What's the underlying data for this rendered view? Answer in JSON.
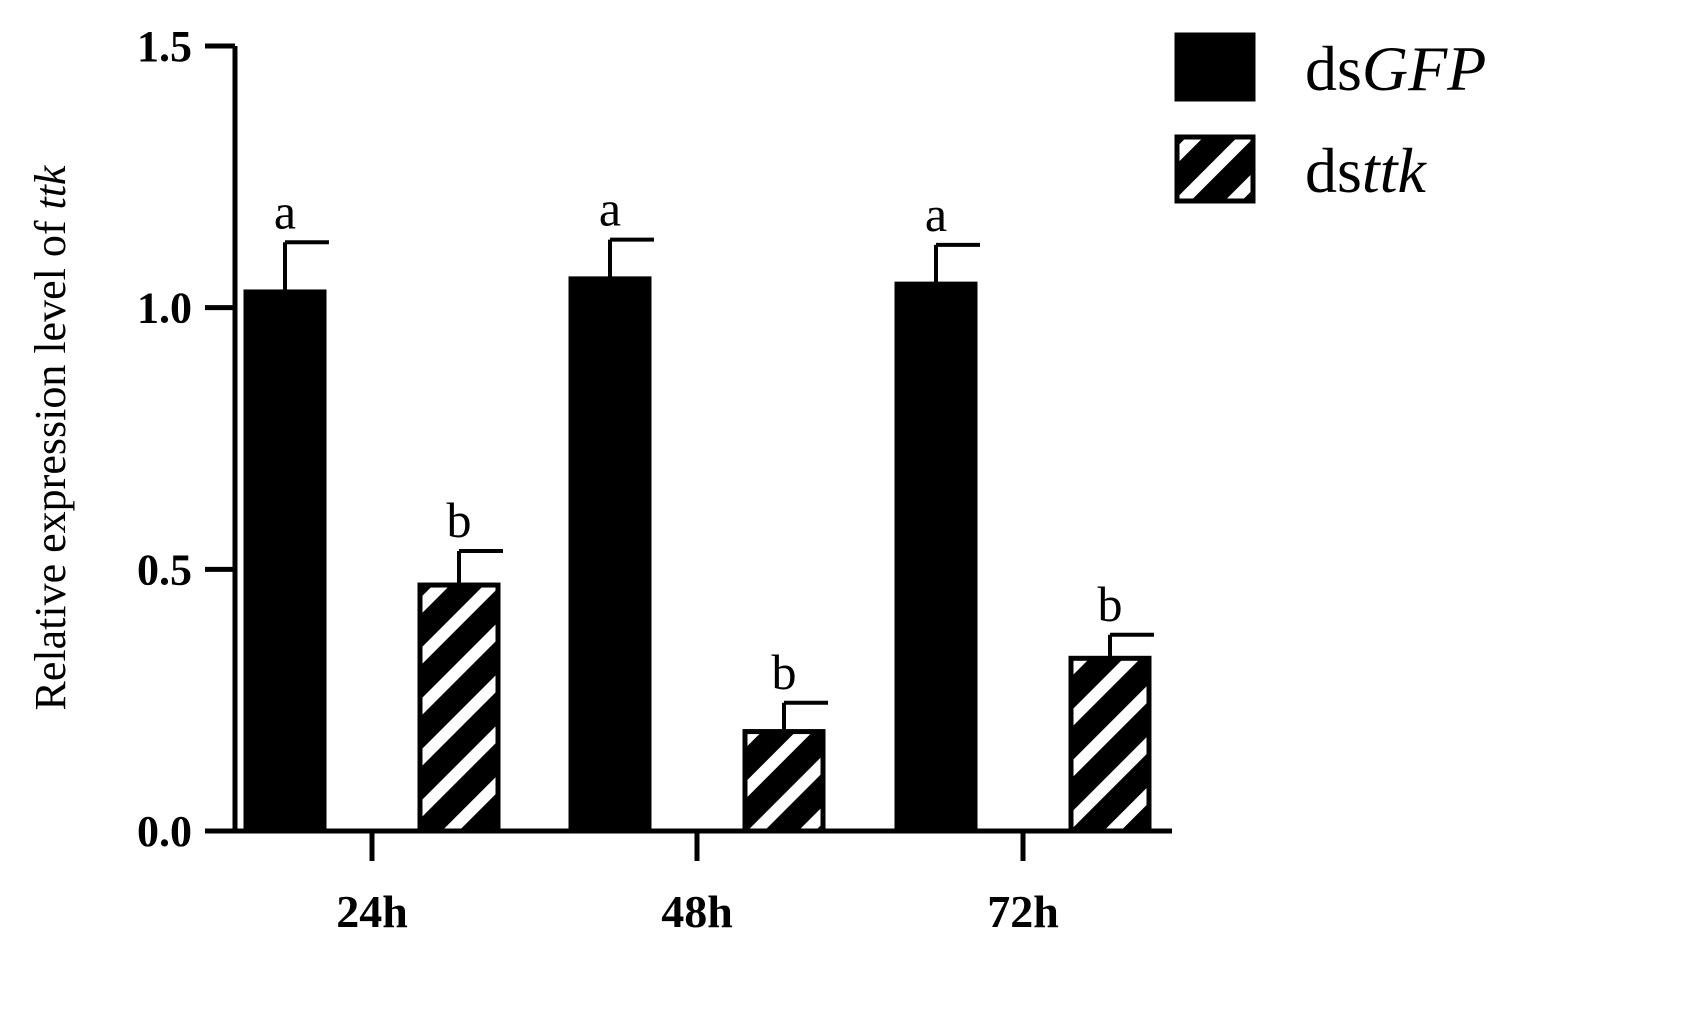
{
  "chart_data": {
    "type": "bar",
    "title": "",
    "xlabel": "",
    "ylabel": {
      "prefix": "Relative expression level of ",
      "italic": "ttk"
    },
    "ylim": [
      0,
      1.5
    ],
    "yticks": [
      0.0,
      0.5,
      1.0,
      1.5
    ],
    "ytick_labels": [
      "0.0",
      "0.5",
      "1.0",
      "1.5"
    ],
    "categories": [
      "24h",
      "48h",
      "72h"
    ],
    "legend_position": "top-right",
    "series": [
      {
        "name": "dsGFP",
        "name_prefix": "ds",
        "name_italic": "GFP",
        "fill": "solid",
        "color": "#000000",
        "values": [
          1.03,
          1.055,
          1.045
        ],
        "errors": [
          0.095,
          0.075,
          0.075
        ],
        "letters": [
          "a",
          "a",
          "a"
        ]
      },
      {
        "name": "dsttk",
        "name_prefix": "ds",
        "name_italic": "ttk",
        "fill": "hatched",
        "color": "#000000",
        "values": [
          0.47,
          0.19,
          0.33
        ],
        "errors": [
          0.065,
          0.055,
          0.045
        ],
        "letters": [
          "b",
          "b",
          "b"
        ]
      }
    ]
  }
}
